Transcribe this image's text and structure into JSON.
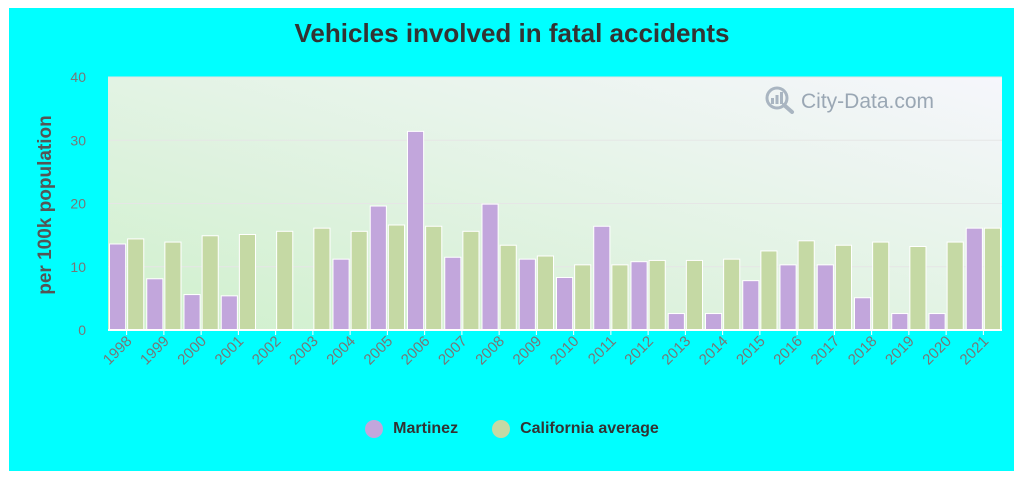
{
  "watermark": {
    "text": "City-Data.com",
    "icon": "magnifier-chart-icon"
  },
  "legend": {
    "items": [
      {
        "label": "Martinez",
        "color": "#c2a6dc"
      },
      {
        "label": "California average",
        "color": "#c5d9a4"
      }
    ]
  },
  "colors": {
    "background": "#00ffff",
    "plot_top": "#f6f6fc",
    "plot_bottom": "#cff0cc",
    "axis_text": "#777777"
  },
  "chart_data": {
    "type": "bar",
    "title": "Vehicles involved in fatal accidents",
    "xlabel": "",
    "ylabel": "per 100k population",
    "ylim": [
      0,
      40
    ],
    "yticks": [
      0,
      10,
      20,
      30,
      40
    ],
    "grid": true,
    "legend_position": "bottom",
    "categories": [
      "1998",
      "1999",
      "2000",
      "2001",
      "2002",
      "2003",
      "2004",
      "2005",
      "2006",
      "2007",
      "2008",
      "2009",
      "2010",
      "2011",
      "2012",
      "2013",
      "2014",
      "2015",
      "2016",
      "2017",
      "2018",
      "2019",
      "2020",
      "2021"
    ],
    "series": [
      {
        "name": "Martinez",
        "color": "#c2a6dc",
        "values": [
          13.6,
          8.1,
          5.6,
          5.4,
          null,
          null,
          11.2,
          19.6,
          31.4,
          11.5,
          19.9,
          11.2,
          8.3,
          16.4,
          10.8,
          2.6,
          2.6,
          7.8,
          10.3,
          10.3,
          5.1,
          2.6,
          2.6,
          16.1
        ]
      },
      {
        "name": "California average",
        "color": "#c5d9a4",
        "values": [
          14.4,
          13.9,
          14.9,
          15.1,
          15.6,
          16.1,
          15.6,
          16.6,
          16.4,
          15.6,
          13.4,
          11.7,
          10.3,
          10.3,
          11.0,
          11.0,
          11.2,
          12.5,
          14.1,
          13.4,
          13.9,
          13.2,
          13.9,
          16.1
        ]
      }
    ]
  }
}
